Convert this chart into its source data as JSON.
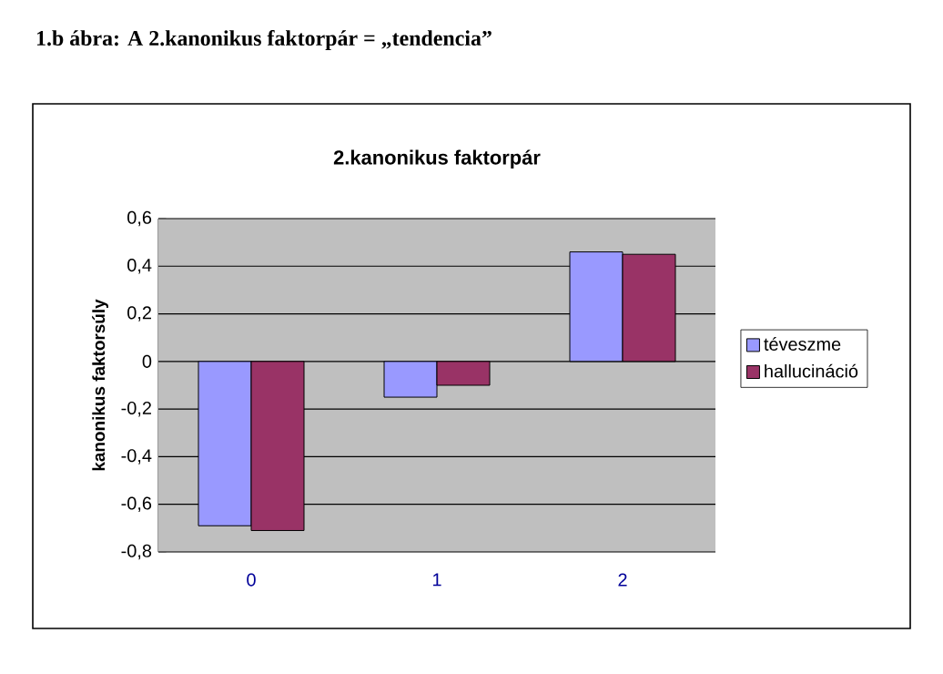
{
  "chart_data": {
    "type": "bar",
    "title": "2.kanonikus faktorpár",
    "ylabel": "kanonikus faktorsúly",
    "annotations": [
      "1.b ábra: A 2.kanonikus faktorpár = „tendencia”"
    ],
    "categories": [
      "0",
      "1",
      "2"
    ],
    "series": [
      {
        "name": "téveszme",
        "color": "#9999ff",
        "values": [
          -0.69,
          -0.15,
          0.46
        ]
      },
      {
        "name": "hallucináció",
        "color": "#993366",
        "values": [
          -0.71,
          -0.1,
          0.45
        ]
      }
    ],
    "ylim": [
      -0.8,
      0.6
    ],
    "yticks": [
      {
        "value": -0.8,
        "label": "-0,8"
      },
      {
        "value": -0.6,
        "label": "-0,6"
      },
      {
        "value": -0.4,
        "label": "-0,4"
      },
      {
        "value": -0.2,
        "label": "-0,2"
      },
      0,
      {
        "value": 0.2,
        "label": "0,2"
      },
      {
        "value": 0.4,
        "label": "0,4"
      },
      {
        "value": 0.6,
        "label": "0,6"
      }
    ],
    "grid": "y",
    "legend": "right"
  }
}
